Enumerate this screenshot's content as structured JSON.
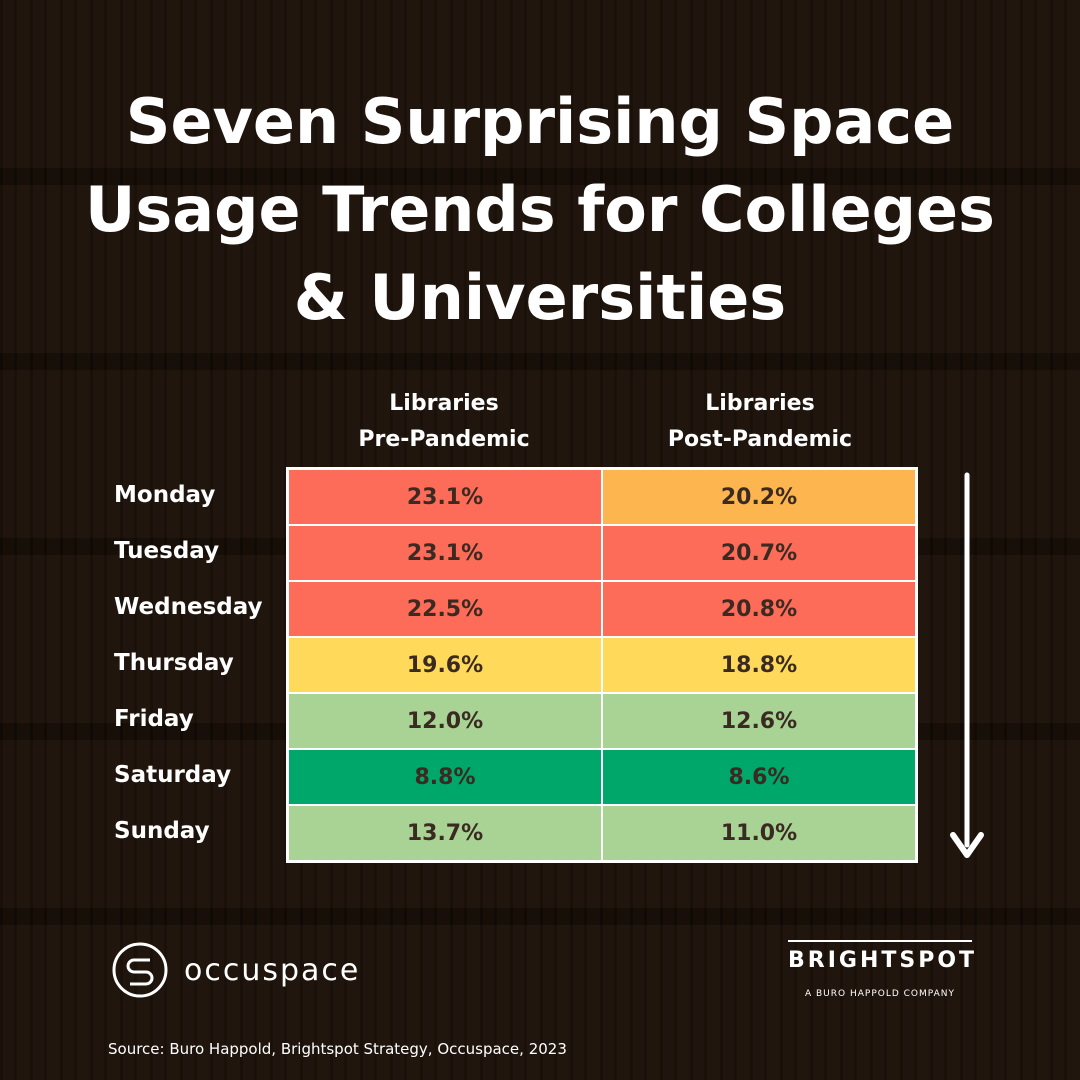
{
  "header": {
    "title": "Seven Surprising Space\nUsage Trends for Colleges\n& Universities"
  },
  "table": {
    "columns": [
      "Libraries\nPre-Pandemic",
      "Libraries\nPost-Pandemic"
    ],
    "rows": [
      [
        "Monday",
        "23.1%",
        "20.2%"
      ],
      [
        "Tuesday",
        "23.1%",
        "20.7%"
      ],
      [
        "Wednesday",
        "22.5%",
        "20.8%"
      ],
      [
        "Thursday",
        "19.6%",
        "18.8%"
      ],
      [
        "Friday",
        "12.0%",
        "12.6%"
      ],
      [
        "Saturday",
        "8.8%",
        "8.6%"
      ],
      [
        "Sunday",
        "13.7%",
        "11.0%"
      ]
    ],
    "cell_colors": [
      [
        "#fd6b59",
        "#fdb64f"
      ],
      [
        "#fd6b59",
        "#fd6b59"
      ],
      [
        "#fd6b59",
        "#fd6b59"
      ],
      [
        "#ffda5a",
        "#ffda5a"
      ],
      [
        "#a8d395",
        "#a8d395"
      ],
      [
        "#00a76a",
        "#00a76a"
      ],
      [
        "#a8d395",
        "#a8d395"
      ]
    ]
  },
  "logos": {
    "left": "occuspace",
    "right": "BRIGHTSPOT",
    "right_tagline": "A BURO HAPPOLD COMPANY"
  },
  "source": "Source: Buro Happold, Brightspot Strategy, Occuspace, 2023"
}
